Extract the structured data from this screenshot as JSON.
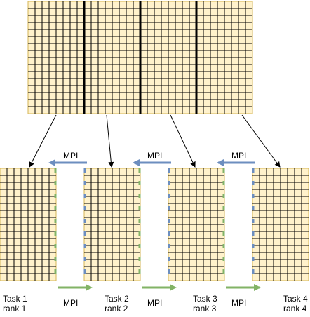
{
  "colors": {
    "cell_fill": "#fff2cc",
    "cell_border": "#d6b656",
    "grid_line": "#000000",
    "mpi_left_arrow": "#6c8ebf",
    "mpi_right_arrow": "#82b366",
    "left_halo": "#6c8ebf",
    "right_halo": "#82b366"
  },
  "global_grid": {
    "columns": 32,
    "rows": 16,
    "partitions": 4
  },
  "subdomains": [
    {
      "task": "Task 1",
      "rank": "rank 1",
      "columns": 8,
      "rows": 16
    },
    {
      "task": "Task 2",
      "rank": "rank 2",
      "columns": 8,
      "rows": 16
    },
    {
      "task": "Task 3",
      "rank": "rank 3",
      "columns": 8,
      "rows": 16
    },
    {
      "task": "Task 4",
      "rank": "rank 4",
      "columns": 8,
      "rows": 16
    }
  ],
  "mpi_top_labels": [
    "MPI",
    "MPI",
    "MPI"
  ],
  "mpi_bottom_labels": [
    "MPI",
    "MPI",
    "MPI"
  ]
}
